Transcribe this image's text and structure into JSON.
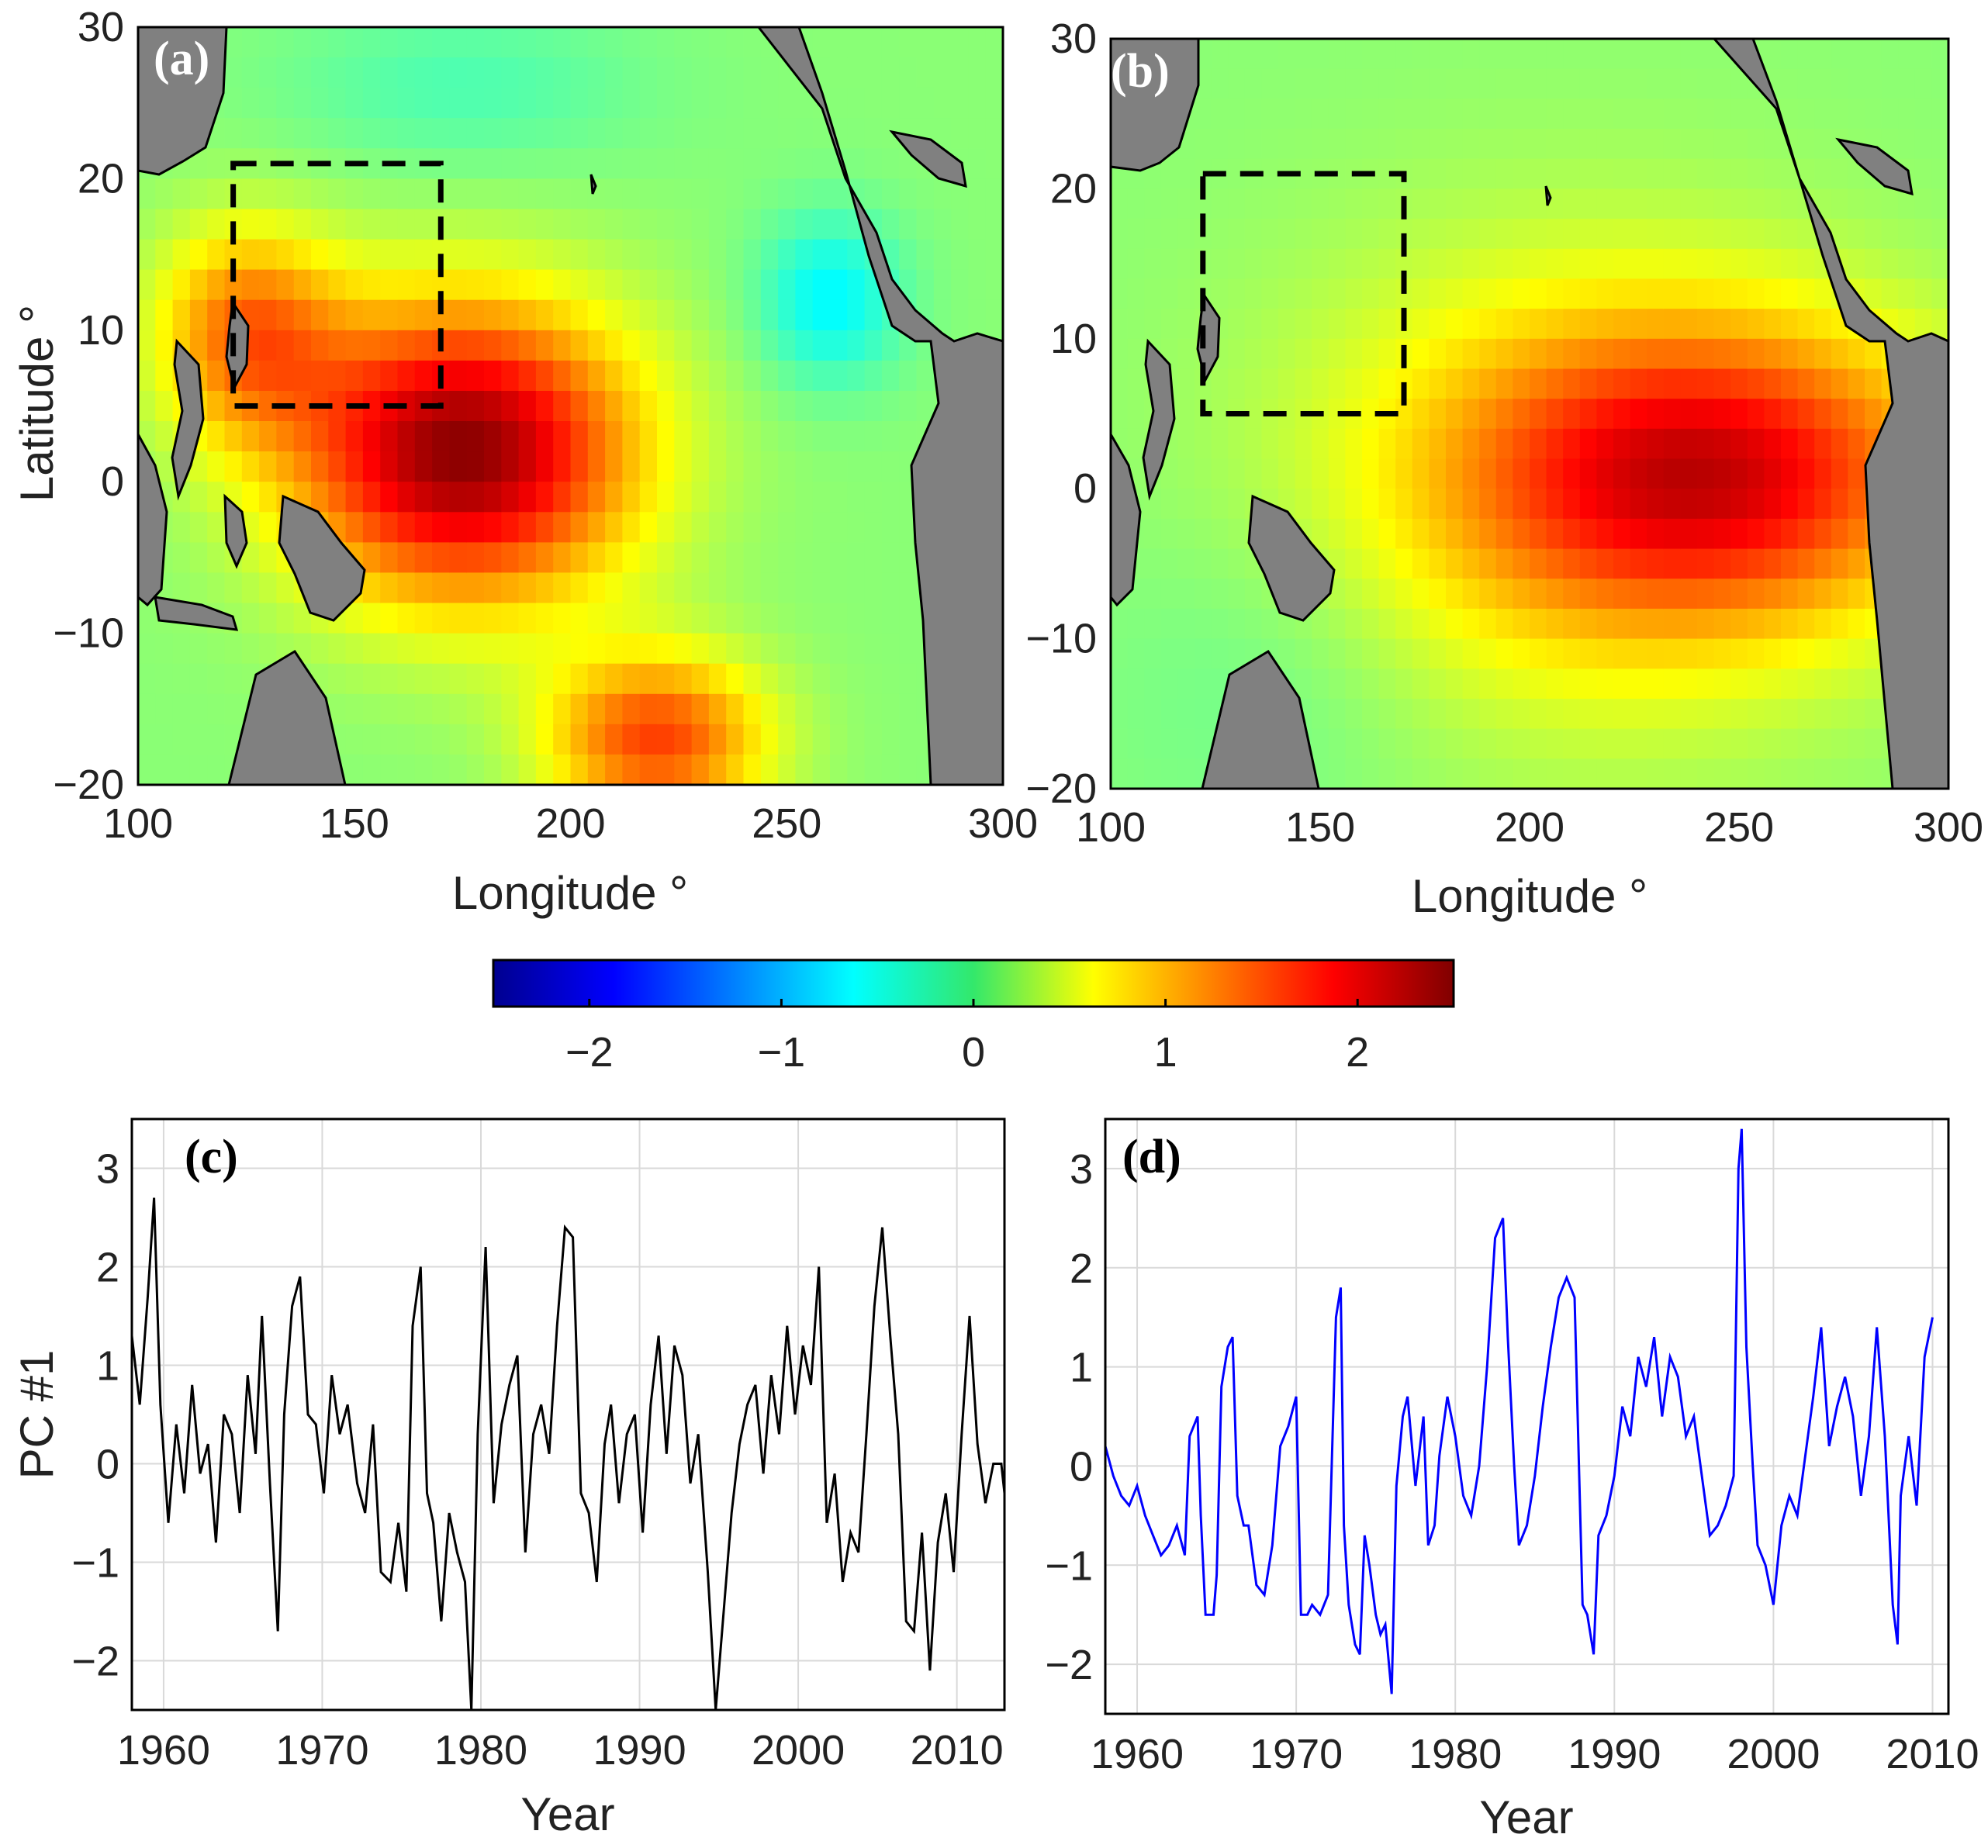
{
  "figure": {
    "panels": {
      "a": "(a)",
      "b": "(b)",
      "c": "(c)",
      "d": "(d)"
    },
    "map_xlabel": "Longitude °",
    "map_ylabel": "Latitude °",
    "ts_xlabel": "Year",
    "ts_ylabel": "PC #1"
  },
  "colors": {
    "land": "#808080",
    "box": "#000000",
    "series_c": "#000000",
    "series_d": "#0000ff",
    "grid": "#d9d9d9"
  },
  "chart_data": [
    {
      "type": "heatmap",
      "panel": "(a)",
      "xlabel": "Longitude °",
      "ylabel": "Latitude °",
      "xlim": [
        100,
        300
      ],
      "ylim": [
        -20,
        30
      ],
      "xticks": [
        "100",
        "150",
        "200",
        "250",
        "300"
      ],
      "yticks": [
        "30",
        "20",
        "10",
        "0",
        "−10",
        "−20"
      ],
      "anomaly_centers": [
        {
          "lon": 175,
          "lat": 2,
          "value": 2.4,
          "lon_spread": 28,
          "lat_spread": 7
        },
        {
          "lon": 125,
          "lat": 10,
          "value": 1.2,
          "lon_spread": 15,
          "lat_spread": 5
        },
        {
          "lon": 220,
          "lat": -17,
          "value": 1.5,
          "lon_spread": 18,
          "lat_spread": 4
        },
        {
          "lon": 260,
          "lat": 12,
          "value": -0.7,
          "lon_spread": 12,
          "lat_spread": 4
        },
        {
          "lon": 175,
          "lat": 26,
          "value": -0.3,
          "lon_spread": 30,
          "lat_spread": 4
        }
      ],
      "dashed_box": {
        "lon": [
          122,
          170
        ],
        "lat": [
          5,
          21
        ]
      }
    },
    {
      "type": "heatmap",
      "panel": "(b)",
      "xlabel": "Longitude °",
      "ylabel": "Latitude °",
      "xlim": [
        100,
        300
      ],
      "ylim": [
        -20,
        30
      ],
      "xticks": [
        "100",
        "150",
        "200",
        "250",
        "300"
      ],
      "yticks": [
        "30",
        "20",
        "10",
        "0",
        "−10",
        "−20"
      ],
      "anomaly_centers": [
        {
          "lon": 245,
          "lat": 1,
          "value": 1.6,
          "lon_spread": 40,
          "lat_spread": 7
        },
        {
          "lon": 210,
          "lat": 0,
          "value": 0.7,
          "lon_spread": 50,
          "lat_spread": 12
        },
        {
          "lon": 140,
          "lat": -12,
          "value": -0.2,
          "lon_spread": 30,
          "lat_spread": 8
        }
      ],
      "dashed_box": {
        "lon": [
          122,
          170
        ],
        "lat": [
          5,
          21
        ]
      }
    },
    {
      "type": "colorbar",
      "range": [
        -2.5,
        2.5
      ],
      "ticks": [
        "−2",
        "−1",
        "0",
        "1",
        "2"
      ],
      "tick_values": [
        -2,
        -1,
        0,
        1,
        2
      ],
      "colormap": "jet"
    },
    {
      "type": "line",
      "panel": "(c)",
      "xlabel": "Year",
      "ylabel": "PC #1",
      "xlim": [
        1958,
        2013
      ],
      "ylim": [
        -2.5,
        3.5
      ],
      "xticks": [
        "1960",
        "1970",
        "1980",
        "1990",
        "2000",
        "2010"
      ],
      "yticks": [
        "3",
        "2",
        "1",
        "0",
        "−1",
        "−2"
      ],
      "series": [
        {
          "name": "PC #1 (c)",
          "x": [
            1958.0,
            1958.5,
            1959.0,
            1959.4,
            1959.8,
            1960.3,
            1960.8,
            1961.3,
            1961.8,
            1962.3,
            1962.8,
            1963.3,
            1963.8,
            1964.3,
            1964.8,
            1965.3,
            1965.8,
            1966.2,
            1966.7,
            1967.2,
            1967.6,
            1968.1,
            1968.6,
            1969.1,
            1969.6,
            1970.1,
            1970.6,
            1971.1,
            1971.6,
            1972.2,
            1972.7,
            1973.2,
            1973.7,
            1974.3,
            1974.8,
            1975.3,
            1975.7,
            1976.2,
            1976.6,
            1977.0,
            1977.5,
            1978.0,
            1978.5,
            1979.0,
            1979.4,
            1979.8,
            1980.3,
            1980.8,
            1981.3,
            1981.8,
            1982.3,
            1982.8,
            1983.3,
            1983.8,
            1984.3,
            1984.8,
            1985.3,
            1985.8,
            1986.3,
            1986.8,
            1987.3,
            1987.8,
            1988.2,
            1988.7,
            1989.2,
            1989.7,
            1990.2,
            1990.7,
            1991.2,
            1991.7,
            1992.2,
            1992.7,
            1993.2,
            1993.7,
            1994.3,
            1994.8,
            1995.3,
            1995.8,
            1996.3,
            1996.8,
            1997.3,
            1997.8,
            1998.3,
            1998.8,
            1999.3,
            1999.8,
            2000.3,
            2000.8,
            2001.3,
            2001.8,
            2002.3,
            2002.8,
            2003.3,
            2003.8,
            2004.3,
            2004.8,
            2005.3,
            2005.8,
            2006.3,
            2006.8,
            2007.3,
            2007.8,
            2008.3,
            2008.8,
            2009.3,
            2009.8,
            2010.3,
            2010.8,
            2011.3,
            2011.8,
            2012.3,
            2012.8,
            2013.0
          ],
          "values": [
            1.3,
            0.6,
            1.7,
            2.7,
            0.6,
            -0.6,
            0.4,
            -0.3,
            0.8,
            -0.1,
            0.2,
            -0.8,
            0.5,
            0.3,
            -0.5,
            0.9,
            0.1,
            1.5,
            -0.2,
            -1.7,
            0.5,
            1.6,
            1.9,
            0.5,
            0.4,
            -0.3,
            0.9,
            0.3,
            0.6,
            -0.2,
            -0.5,
            0.4,
            -1.1,
            -1.2,
            -0.6,
            -1.3,
            1.4,
            2.0,
            -0.3,
            -0.6,
            -1.6,
            -0.5,
            -0.9,
            -1.2,
            -2.5,
            0.3,
            2.2,
            -0.4,
            0.4,
            0.8,
            1.1,
            -0.9,
            0.3,
            0.6,
            0.1,
            1.4,
            2.4,
            2.3,
            -0.3,
            -0.5,
            -1.2,
            0.2,
            0.6,
            -0.4,
            0.3,
            0.5,
            -0.7,
            0.6,
            1.3,
            0.1,
            1.2,
            0.9,
            -0.2,
            0.3,
            -1.1,
            -2.5,
            -1.5,
            -0.5,
            0.2,
            0.6,
            0.8,
            -0.1,
            0.9,
            0.3,
            1.4,
            0.5,
            1.2,
            0.8,
            2.0,
            -0.6,
            -0.1,
            -1.2,
            -0.7,
            -0.9,
            0.3,
            1.6,
            2.4,
            1.3,
            0.3,
            -1.6,
            -1.7,
            -0.7,
            -2.1,
            -0.8,
            -0.3,
            -1.1,
            0.3,
            1.5,
            0.2,
            -0.4,
            0.0,
            0.0,
            -0.3
          ]
        }
      ]
    },
    {
      "type": "line",
      "panel": "(d)",
      "xlabel": "Year",
      "ylabel": "",
      "xlim": [
        1958,
        2011
      ],
      "ylim": [
        -2.5,
        3.5
      ],
      "xticks": [
        "1960",
        "1970",
        "1980",
        "1990",
        "2000",
        "2010"
      ],
      "yticks": [
        "3",
        "2",
        "1",
        "0",
        "−1",
        "−2"
      ],
      "series": [
        {
          "name": "PC #1 (d)",
          "x": [
            1958.0,
            1958.5,
            1959.0,
            1959.5,
            1960.0,
            1960.5,
            1961.0,
            1961.5,
            1962.0,
            1962.5,
            1963.0,
            1963.3,
            1963.8,
            1964.0,
            1964.3,
            1964.8,
            1965.0,
            1965.3,
            1965.7,
            1966.0,
            1966.3,
            1966.7,
            1967.0,
            1967.5,
            1968.0,
            1968.5,
            1969.0,
            1969.5,
            1970.0,
            1970.3,
            1970.7,
            1971.0,
            1971.5,
            1972.0,
            1972.5,
            1972.8,
            1973.0,
            1973.3,
            1973.7,
            1974.0,
            1974.3,
            1974.6,
            1975.0,
            1975.3,
            1975.6,
            1976.0,
            1976.3,
            1976.7,
            1977.0,
            1977.5,
            1978.0,
            1978.3,
            1978.7,
            1979.0,
            1979.5,
            1980.0,
            1980.5,
            1981.0,
            1981.5,
            1982.0,
            1982.5,
            1983.0,
            1983.3,
            1983.7,
            1984.0,
            1984.5,
            1985.0,
            1985.5,
            1986.0,
            1986.5,
            1987.0,
            1987.5,
            1988.0,
            1988.3,
            1988.7,
            1989.0,
            1989.5,
            1990.0,
            1990.5,
            1991.0,
            1991.5,
            1992.0,
            1992.5,
            1993.0,
            1993.5,
            1994.0,
            1994.5,
            1995.0,
            1995.5,
            1996.0,
            1996.5,
            1997.0,
            1997.5,
            1997.8,
            1998.0,
            1998.3,
            1998.7,
            1999.0,
            1999.5,
            2000.0,
            2000.5,
            2001.0,
            2001.5,
            2002.0,
            2002.5,
            2003.0,
            2003.5,
            2004.0,
            2004.5,
            2005.0,
            2005.5,
            2006.0,
            2006.5,
            2007.0,
            2007.5,
            2007.8,
            2008.0,
            2008.5,
            2009.0,
            2009.5,
            2010.0
          ],
          "values": [
            0.2,
            -0.1,
            -0.3,
            -0.4,
            -0.2,
            -0.5,
            -0.7,
            -0.9,
            -0.8,
            -0.6,
            -0.9,
            0.3,
            0.5,
            -0.5,
            -1.5,
            -1.5,
            -1.1,
            0.8,
            1.2,
            1.3,
            -0.3,
            -0.6,
            -0.6,
            -1.2,
            -1.3,
            -0.8,
            0.2,
            0.4,
            0.7,
            -1.5,
            -1.5,
            -1.4,
            -1.5,
            -1.3,
            1.5,
            1.8,
            -0.6,
            -1.4,
            -1.8,
            -1.9,
            -0.7,
            -1.0,
            -1.5,
            -1.7,
            -1.6,
            -2.3,
            -0.2,
            0.5,
            0.7,
            -0.2,
            0.5,
            -0.8,
            -0.6,
            0.1,
            0.7,
            0.3,
            -0.3,
            -0.5,
            0.0,
            1.0,
            2.3,
            2.5,
            1.3,
            0.0,
            -0.8,
            -0.6,
            -0.1,
            0.6,
            1.2,
            1.7,
            1.9,
            1.7,
            -1.4,
            -1.5,
            -1.9,
            -0.7,
            -0.5,
            -0.1,
            0.6,
            0.3,
            1.1,
            0.8,
            1.3,
            0.5,
            1.1,
            0.9,
            0.3,
            0.5,
            -0.1,
            -0.7,
            -0.6,
            -0.4,
            -0.1,
            3.0,
            3.4,
            1.2,
            0.0,
            -0.8,
            -1.0,
            -1.4,
            -0.6,
            -0.3,
            -0.5,
            0.1,
            0.7,
            1.4,
            0.2,
            0.6,
            0.9,
            0.5,
            -0.3,
            0.3,
            1.4,
            0.3,
            -1.4,
            -1.8,
            -0.3,
            0.3,
            -0.4,
            1.1,
            1.5
          ]
        }
      ]
    }
  ]
}
